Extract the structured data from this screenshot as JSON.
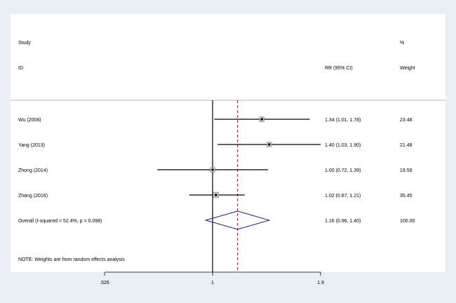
{
  "chart_data": {
    "type": "forest",
    "headers": {
      "study_line1": "Study",
      "study_line2": "ID",
      "ci": "RR (95% CI)",
      "weight_line1": "%",
      "weight_line2": "Weight"
    },
    "studies": [
      {
        "label": "Wu (2008)",
        "rr": 1.34,
        "lo": 1.01,
        "hi": 1.78,
        "ci_text": "1.34 (1.01, 1.78)",
        "weight": 23.48,
        "weight_text": "23.48"
      },
      {
        "label": "Yang (2013)",
        "rr": 1.4,
        "lo": 1.03,
        "hi": 1.9,
        "ci_text": "1.40 (1.03, 1.90)",
        "weight": 21.48,
        "weight_text": "21.48"
      },
      {
        "label": "Zhong (2014)",
        "rr": 1.0,
        "lo": 0.72,
        "hi": 1.39,
        "ci_text": "1.00 (0.72, 1.39)",
        "weight": 19.59,
        "weight_text": "19.59"
      },
      {
        "label": "Zhang (2016)",
        "rr": 1.02,
        "lo": 0.87,
        "hi": 1.21,
        "ci_text": "1.02 (0.87, 1.21)",
        "weight": 35.45,
        "weight_text": "35.45"
      }
    ],
    "overall": {
      "label": "Overall  (I-squared = 52.4%, p = 0.098)",
      "rr": 1.16,
      "lo": 0.96,
      "hi": 1.4,
      "ci_text": "1.16 (0.96, 1.40)",
      "weight_text": "100.00"
    },
    "note": "NOTE: Weights are from random effects analysis",
    "x_ticks": [
      {
        "value": 0.526,
        "label": ".526"
      },
      {
        "value": 1,
        "label": "1"
      },
      {
        "value": 1.9,
        "label": "1.9"
      }
    ],
    "x_scale": "log",
    "xlim": [
      0.526,
      1.9
    ],
    "null_line": 1,
    "colors": {
      "background": "#e9eff4",
      "panel": "#ffffff",
      "marks": "#000000",
      "overall_line": "#8b1a1a",
      "diamond": "#1a1a8b"
    }
  }
}
